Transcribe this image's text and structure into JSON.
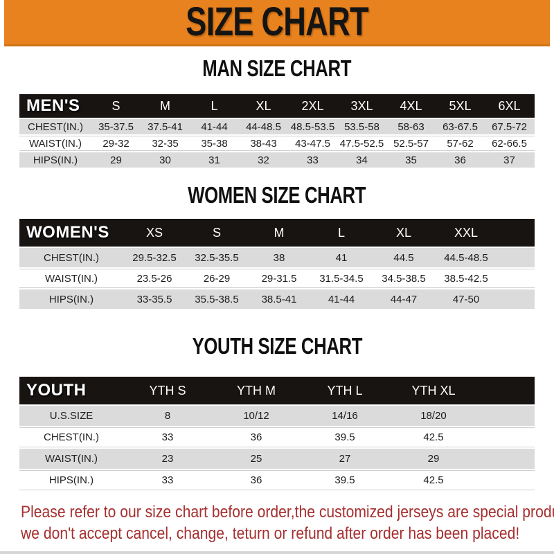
{
  "banner": {
    "title": "SIZE CHART",
    "bg_color": "#E8821E"
  },
  "colors": {
    "banner_orange": "#E8821E",
    "table_header_black": "#171412",
    "row_gray": "#DBDBDB",
    "disclaimer_red": "#A62F2F"
  },
  "sections": [
    {
      "heading": "MAN SIZE CHART",
      "label": "MEN'S",
      "columns": [
        "S",
        "M",
        "L",
        "XL",
        "2XL",
        "3XL",
        "4XL",
        "5XL",
        "6XL"
      ],
      "rows": [
        {
          "label": "CHEST(IN.)",
          "values": [
            "35-37.5",
            "37.5-41",
            "41-44",
            "44-48.5",
            "48.5-53.5",
            "53.5-58",
            "58-63",
            "63-67.5",
            "67.5-72"
          ]
        },
        {
          "label": "WAIST(IN.)",
          "values": [
            "29-32",
            "32-35",
            "35-38",
            "38-43",
            "43-47.5",
            "47.5-52.5",
            "52.5-57",
            "57-62",
            "62-66.5"
          ]
        },
        {
          "label": "HIPS(IN.)",
          "values": [
            "29",
            "30",
            "31",
            "32",
            "33",
            "34",
            "35",
            "36",
            "37"
          ]
        }
      ]
    },
    {
      "heading": "WOMEN SIZE CHART",
      "label": "WOMEN'S",
      "columns": [
        "XS",
        "S",
        "M",
        "L",
        "XL",
        "XXL"
      ],
      "rows": [
        {
          "label": "CHEST(IN.)",
          "values": [
            "29.5-32.5",
            "32.5-35.5",
            "38",
            "41",
            "44.5",
            "44.5-48.5"
          ]
        },
        {
          "label": "WAIST(IN.)",
          "values": [
            "23.5-26",
            "26-29",
            "29-31.5",
            "31.5-34.5",
            "34.5-38.5",
            "38.5-42.5"
          ]
        },
        {
          "label": "HIPS(IN.)",
          "values": [
            "33-35.5",
            "35.5-38.5",
            "38.5-41",
            "41-44",
            "44-47",
            "47-50"
          ]
        }
      ]
    },
    {
      "heading": "YOUTH SIZE CHART",
      "label": "YOUTH",
      "columns": [
        "YTH S",
        "YTH M",
        "YTH L",
        "YTH XL"
      ],
      "rows": [
        {
          "label": "U.S.SIZE",
          "values": [
            "8",
            "10/12",
            "14/16",
            "18/20"
          ]
        },
        {
          "label": "CHEST(IN.)",
          "values": [
            "33",
            "36",
            "39.5",
            "42.5"
          ]
        },
        {
          "label": "WAIST(IN.)",
          "values": [
            "23",
            "25",
            "27",
            "29"
          ]
        },
        {
          "label": "HIPS(IN.)",
          "values": [
            "33",
            "36",
            "39.5",
            "42.5"
          ]
        }
      ]
    }
  ],
  "footer": {
    "line1": "Please refer to our size chart before order,the customized jerseys are special products,",
    "line2": "we don't accept cancel, change, teturn or refund after order has been placed!"
  }
}
